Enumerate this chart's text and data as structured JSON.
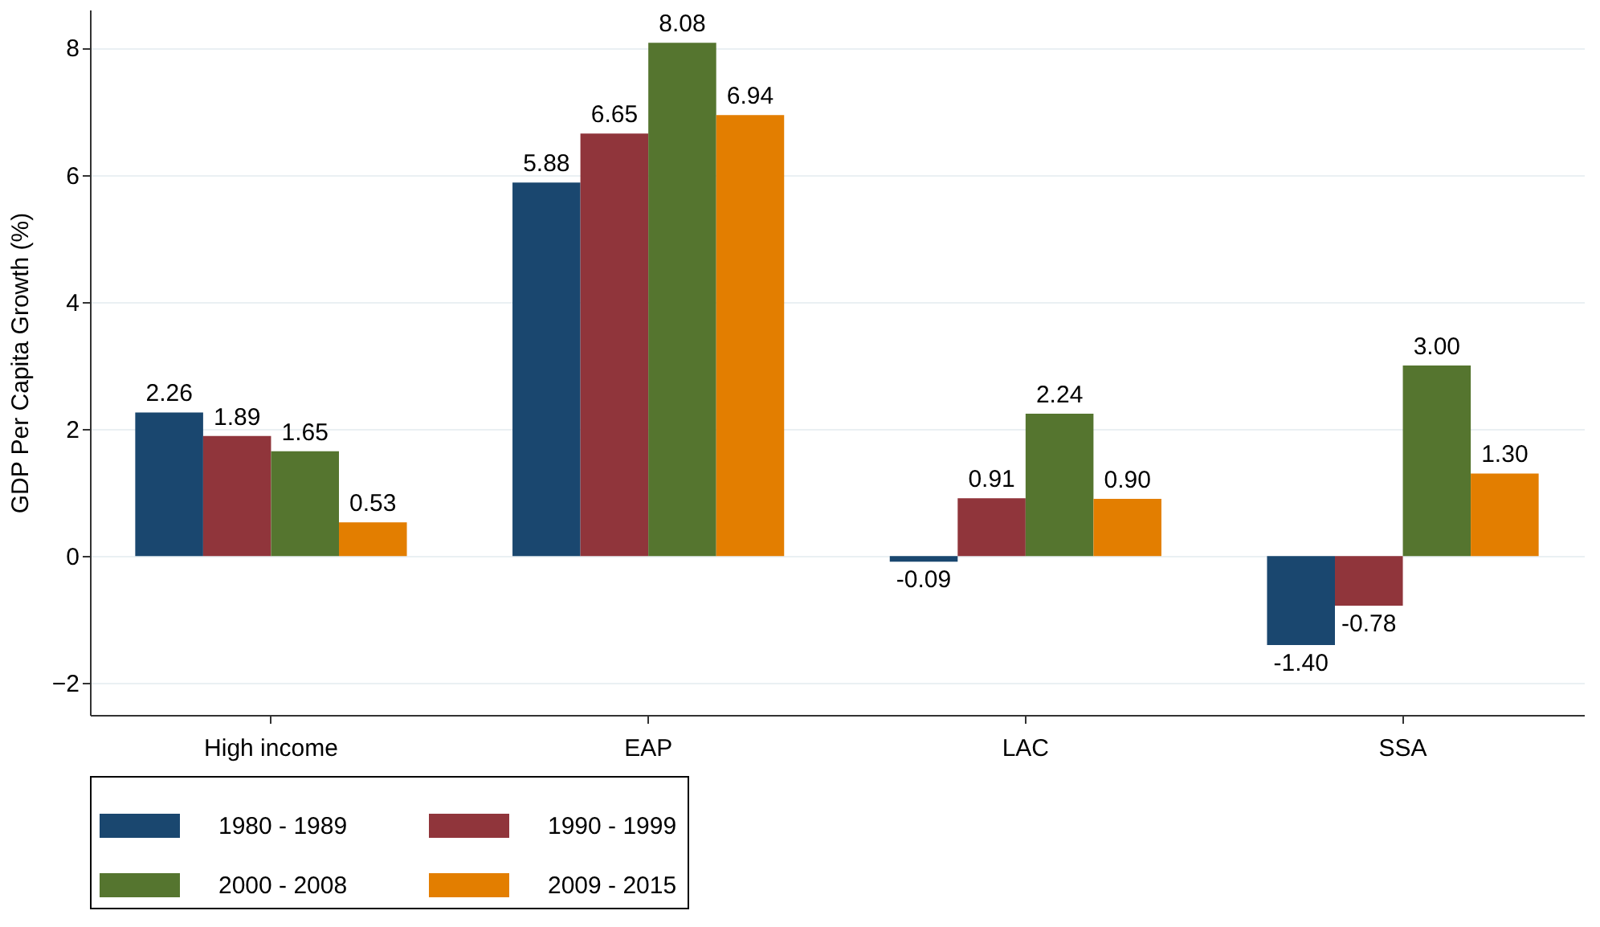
{
  "chart_data": {
    "type": "bar",
    "ylabel": "GDP Per Capita Growth (%)",
    "categories": [
      "High income",
      "EAP",
      "LAC",
      "SSA"
    ],
    "series": [
      {
        "name": "1980 - 1989",
        "color": "#1a476f",
        "values": [
          2.26,
          5.88,
          -0.09,
          -1.4
        ],
        "value_labels": [
          "2.26",
          "5.88",
          "-0.09",
          "-1.40"
        ]
      },
      {
        "name": "1990 - 1999",
        "color": "#90353b",
        "values": [
          1.89,
          6.65,
          0.91,
          -0.78
        ],
        "value_labels": [
          "1.89",
          "6.65",
          "0.91",
          "-0.78"
        ]
      },
      {
        "name": "2000 - 2008",
        "color": "#55752f",
        "values": [
          1.65,
          8.08,
          2.24,
          3.0
        ],
        "value_labels": [
          "1.65",
          "8.08",
          "2.24",
          "3.00"
        ]
      },
      {
        "name": "2009 - 2015",
        "color": "#e37e00",
        "values": [
          0.53,
          6.94,
          0.9,
          1.3
        ],
        "value_labels": [
          "0.53",
          "6.94",
          "0.90",
          "1.30"
        ]
      }
    ],
    "ylim": [
      -2.5,
      8.6
    ],
    "yticks": [
      -2,
      0,
      2,
      4,
      6,
      8
    ],
    "grid": "y",
    "legend": "bottom"
  }
}
